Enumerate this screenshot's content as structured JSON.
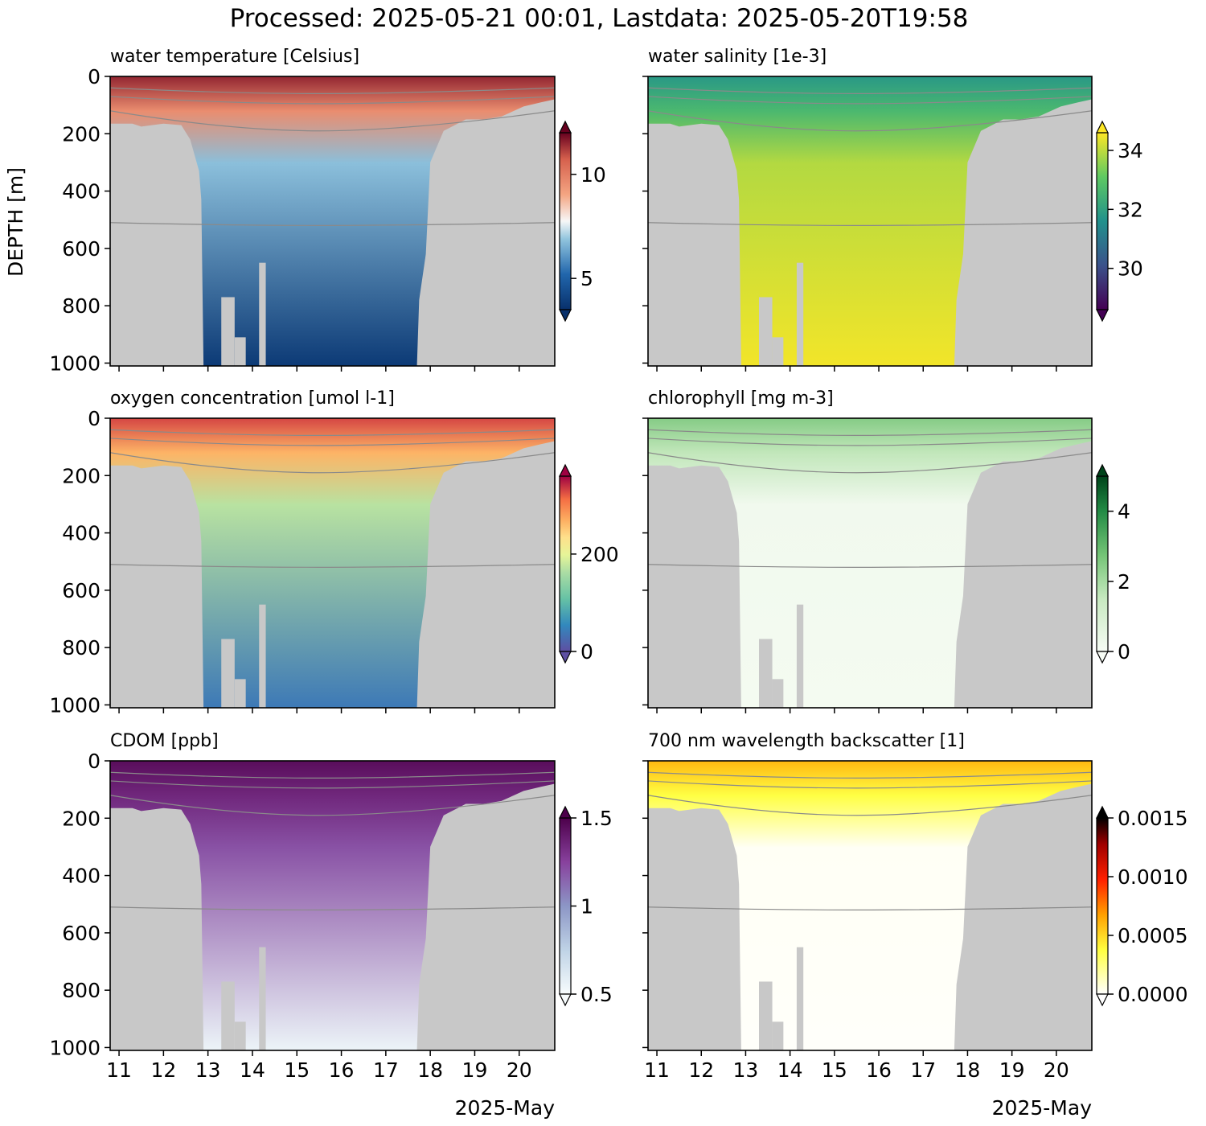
{
  "suptitle": "Processed: 2025-05-21 00:01, Lastdata: 2025-05-20T19:58",
  "ylabel": "DEPTH [m]",
  "xlabel": "2025-May",
  "x_ticks": [
    "11",
    "12",
    "13",
    "14",
    "15",
    "16",
    "17",
    "18",
    "19",
    "20"
  ],
  "y_ticks": [
    "0",
    "200",
    "400",
    "600",
    "800",
    "1000"
  ],
  "chart_data": [
    {
      "type": "heatmap",
      "title": "water temperature [Celsius]",
      "colormap": "RdBu_r",
      "colorbar": {
        "ticks": [
          5,
          10
        ],
        "range": [
          3.5,
          12.0
        ]
      },
      "surface_value": 11.5,
      "mid_value": 6.8,
      "deep_value": 3.8,
      "xlim": [
        10.8,
        20.8
      ],
      "ylim": [
        1010,
        0
      ]
    },
    {
      "type": "heatmap",
      "title": "water salinity [1e-3]",
      "colormap": "viridis",
      "colorbar": {
        "ticks": [
          30,
          32,
          34
        ],
        "range": [
          28.6,
          34.6
        ]
      },
      "surface_value": 31.8,
      "mid_value": 33.9,
      "deep_value": 34.5,
      "xlim": [
        10.8,
        20.8
      ],
      "ylim": [
        1010,
        0
      ]
    },
    {
      "type": "heatmap",
      "title": "oxygen concentration [umol l-1]",
      "colormap": "Spectral_r",
      "colorbar": {
        "ticks": [
          0,
          200
        ],
        "range": [
          0,
          360
        ]
      },
      "surface_value": 330,
      "mid_value": 170,
      "deep_value": 40,
      "xlim": [
        10.8,
        20.8
      ],
      "ylim": [
        1010,
        0
      ]
    },
    {
      "type": "heatmap",
      "title": "chlorophyll [mg m-3]",
      "colormap": "Greens",
      "colorbar": {
        "ticks": [
          0,
          2,
          4
        ],
        "range": [
          0,
          5
        ]
      },
      "surface_value": 2.5,
      "mid_value": 0.2,
      "deep_value": 0.1,
      "xlim": [
        10.8,
        20.8
      ],
      "ylim": [
        1010,
        0
      ]
    },
    {
      "type": "heatmap",
      "title": "CDOM [ppb]",
      "colormap": "BuPu",
      "colorbar": {
        "ticks": [
          0.5,
          1.0,
          1.5
        ],
        "range": [
          0.5,
          1.5
        ]
      },
      "surface_value": 1.45,
      "mid_value": 1.2,
      "deep_value": 0.55,
      "xlim": [
        10.8,
        20.8
      ],
      "ylim": [
        1010,
        0
      ]
    },
    {
      "type": "heatmap",
      "title": "700 nm wavelength backscatter [1]",
      "colormap": "hot_r",
      "colorbar": {
        "ticks": [
          "0.0000",
          "0.0005",
          "0.0010",
          "0.0015"
        ],
        "range": [
          0,
          0.0015
        ]
      },
      "surface_value": 0.0006,
      "mid_value": 2e-05,
      "deep_value": 1e-05,
      "xlim": [
        10.8,
        20.8
      ],
      "ylim": [
        1010,
        0
      ]
    }
  ]
}
